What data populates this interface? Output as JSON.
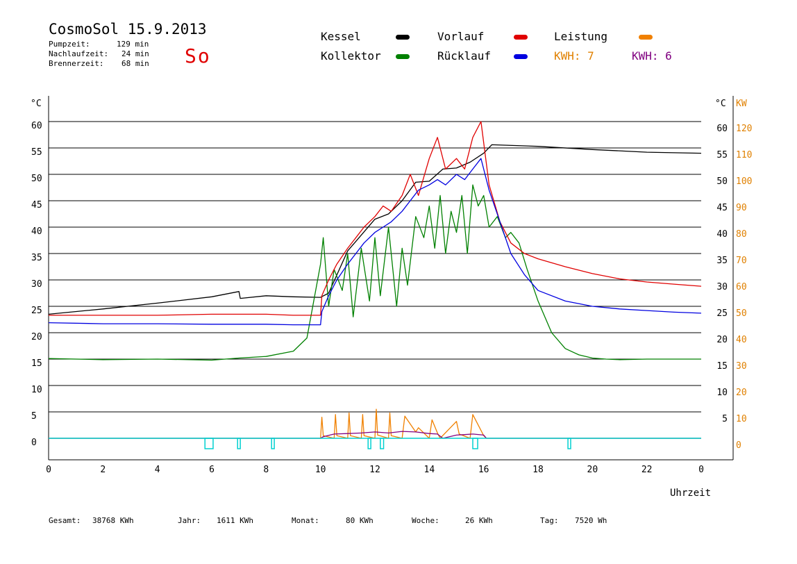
{
  "header": {
    "title": "CosmoSol 15.9.2013",
    "day": "So",
    "info": [
      {
        "label": "Pumpzeit:",
        "value": "129 min"
      },
      {
        "label": "Nachlaufzeit:",
        "value": "24 min"
      },
      {
        "label": "Brennerzeit:",
        "value": "68 min"
      }
    ]
  },
  "legend": {
    "items": [
      {
        "label": "Kessel",
        "color": "#000000"
      },
      {
        "label": "Kollektor",
        "color": "#008000"
      },
      {
        "label": "Vorlauf",
        "color": "#e00000"
      },
      {
        "label": "Rücklauf",
        "color": "#0000e0"
      },
      {
        "label": "Leistung",
        "color": "#f08000"
      }
    ],
    "kwh": [
      {
        "label": "KWH: 7",
        "color": "#e08000"
      },
      {
        "label": "KWH: 6",
        "color": "#800080"
      }
    ]
  },
  "footer": [
    {
      "label": "Gesamt:",
      "value": "38768 KWh"
    },
    {
      "label": "Jahr:",
      "value": "1611 KWh"
    },
    {
      "label": "Monat:",
      "value": "80 KWh"
    },
    {
      "label": "Woche:",
      "value": "26 KWh"
    },
    {
      "label": "Tag:",
      "value": "7520 Wh"
    }
  ],
  "chart_data": {
    "type": "line",
    "xlabel": "Uhrzeit",
    "ylabel_left": "°C",
    "ylabel_right": "°C",
    "ylabel_right2": "KW",
    "x_ticks": [
      "0",
      "2",
      "4",
      "6",
      "8",
      "10",
      "12",
      "14",
      "16",
      "18",
      "20",
      "22",
      "0"
    ],
    "y_ticks_left": [
      "0",
      "5",
      "10",
      "15",
      "20",
      "25",
      "30",
      "35",
      "40",
      "45",
      "50",
      "55",
      "60"
    ],
    "y_ticks_right": [
      "5",
      "10",
      "15",
      "20",
      "25",
      "30",
      "35",
      "40",
      "45",
      "50",
      "55",
      "60"
    ],
    "y_ticks_right2": [
      "0",
      "10",
      "20",
      "30",
      "40",
      "50",
      "60",
      "70",
      "80",
      "90",
      "100",
      "110",
      "120"
    ],
    "xlim": [
      0,
      24
    ],
    "ylim": [
      0,
      65
    ],
    "grid": "horizontal",
    "series": [
      {
        "name": "Kessel",
        "color": "#000000",
        "x": [
          0,
          2,
          4,
          6,
          7,
          7.05,
          8,
          9,
          10,
          10.3,
          11,
          12,
          12.5,
          13,
          13.5,
          14,
          14.5,
          15,
          15.5,
          16,
          16.3,
          18,
          20,
          22,
          24
        ],
        "y": [
          23.5,
          24.5,
          25.6,
          26.8,
          27.8,
          26.5,
          27.0,
          26.8,
          26.7,
          27.5,
          35.5,
          41.5,
          42.5,
          45,
          48.5,
          48.7,
          51,
          51.2,
          52.3,
          54,
          55.6,
          55.3,
          54.7,
          54.2,
          54.0
        ]
      },
      {
        "name": "Kollektor",
        "color": "#008000",
        "x": [
          0,
          2,
          4,
          6,
          7,
          8,
          9,
          9.5,
          10,
          10.1,
          10.3,
          10.5,
          10.8,
          11,
          11.2,
          11.5,
          11.8,
          12,
          12.2,
          12.5,
          12.8,
          13,
          13.2,
          13.5,
          13.8,
          14,
          14.2,
          14.4,
          14.6,
          14.8,
          15,
          15.2,
          15.4,
          15.6,
          15.8,
          16,
          16.2,
          16.5,
          16.8,
          17,
          17.3,
          17.6,
          18,
          18.5,
          19,
          19.5,
          20,
          20.5,
          21,
          22,
          23,
          24
        ],
        "y": [
          15.1,
          14.9,
          15.0,
          14.8,
          15.2,
          15.5,
          16.5,
          19,
          33,
          38,
          25,
          32,
          28,
          35,
          23,
          36,
          26,
          38,
          27,
          40,
          25,
          36,
          29,
          42,
          38,
          44,
          36,
          46,
          35,
          43,
          39,
          46,
          35,
          48,
          44,
          46,
          40,
          42,
          38,
          39,
          37,
          32,
          26,
          20,
          17,
          15.8,
          15.2,
          15.0,
          14.9,
          15.0,
          15.0,
          15.0
        ]
      },
      {
        "name": "Vorlauf",
        "color": "#e00000",
        "x": [
          0,
          2,
          4,
          6,
          8,
          9,
          10,
          10.05,
          10.3,
          10.6,
          11,
          11.3,
          11.6,
          12,
          12.3,
          12.6,
          13,
          13.3,
          13.6,
          14,
          14.3,
          14.6,
          15,
          15.3,
          15.6,
          15.9,
          16.2,
          16.6,
          17,
          17.5,
          18,
          19,
          20,
          21,
          22,
          23,
          24
        ],
        "y": [
          23.3,
          23.3,
          23.3,
          23.5,
          23.5,
          23.3,
          23.3,
          27,
          30,
          33,
          36,
          38,
          40,
          42,
          44,
          43,
          46,
          50,
          46,
          53,
          57,
          51,
          53,
          51,
          57,
          60,
          48,
          41,
          37,
          35,
          34,
          32.5,
          31.2,
          30.2,
          29.6,
          29.2,
          28.8
        ]
      },
      {
        "name": "Rücklauf",
        "color": "#0000e0",
        "x": [
          0,
          2,
          4,
          6,
          8,
          9,
          10,
          10.05,
          10.3,
          10.6,
          11,
          11.3,
          11.6,
          12,
          12.3,
          12.6,
          13,
          13.3,
          13.6,
          14,
          14.3,
          14.6,
          15,
          15.3,
          15.6,
          15.9,
          16.2,
          16.6,
          17,
          17.5,
          18,
          19,
          20,
          21,
          22,
          23,
          24
        ],
        "y": [
          21.9,
          21.7,
          21.7,
          21.6,
          21.6,
          21.5,
          21.5,
          24,
          27,
          30,
          33,
          35,
          37,
          39,
          40,
          41,
          43,
          45,
          47,
          48,
          49,
          48,
          50,
          49,
          51,
          53,
          47,
          41,
          35,
          31,
          28,
          26,
          25,
          24.5,
          24.2,
          23.9,
          23.7
        ]
      },
      {
        "name": "Leistung",
        "color": "#f08000",
        "x": [
          0,
          10,
          10.05,
          10.1,
          10.5,
          10.55,
          10.6,
          11,
          11.05,
          11.1,
          11.5,
          11.55,
          11.6,
          12,
          12.05,
          12.1,
          12.5,
          12.55,
          12.6,
          13,
          13.1,
          13.5,
          13.6,
          14,
          14.1,
          14.3,
          14.4,
          15,
          15.1,
          15.5,
          15.6,
          16,
          16.1,
          24
        ],
        "y": [
          0,
          0,
          4,
          0.5,
          0,
          4.5,
          0.5,
          0,
          4.8,
          0.5,
          0,
          4.5,
          0.5,
          0,
          5.5,
          0.6,
          0,
          4.8,
          0.5,
          0,
          4.2,
          1.2,
          2.0,
          0,
          3.5,
          1.0,
          0,
          3.2,
          0.8,
          0,
          4.5,
          0.5,
          0,
          0
        ]
      },
      {
        "name": "KWH 6",
        "color": "#800080",
        "x": [
          0,
          10,
          10.1,
          10.5,
          11,
          11.5,
          12,
          12.5,
          13,
          13.5,
          14,
          14.3,
          14.5,
          15,
          15.3,
          15.6,
          16,
          16.1,
          24
        ],
        "y": [
          0,
          0,
          0.3,
          0.8,
          0.9,
          1.0,
          1.2,
          1.0,
          1.3,
          1.2,
          0.9,
          0.8,
          0,
          0.6,
          0.7,
          0.8,
          0.6,
          0,
          0
        ]
      }
    ],
    "pulses": [
      {
        "start": 5.75,
        "end": 6.05
      },
      {
        "start": 6.95,
        "end": 7.05
      },
      {
        "start": 8.2,
        "end": 8.3
      },
      {
        "start": 11.75,
        "end": 11.85
      },
      {
        "start": 12.2,
        "end": 12.32
      },
      {
        "start": 15.6,
        "end": 15.78
      },
      {
        "start": 19.1,
        "end": 19.2
      }
    ]
  }
}
